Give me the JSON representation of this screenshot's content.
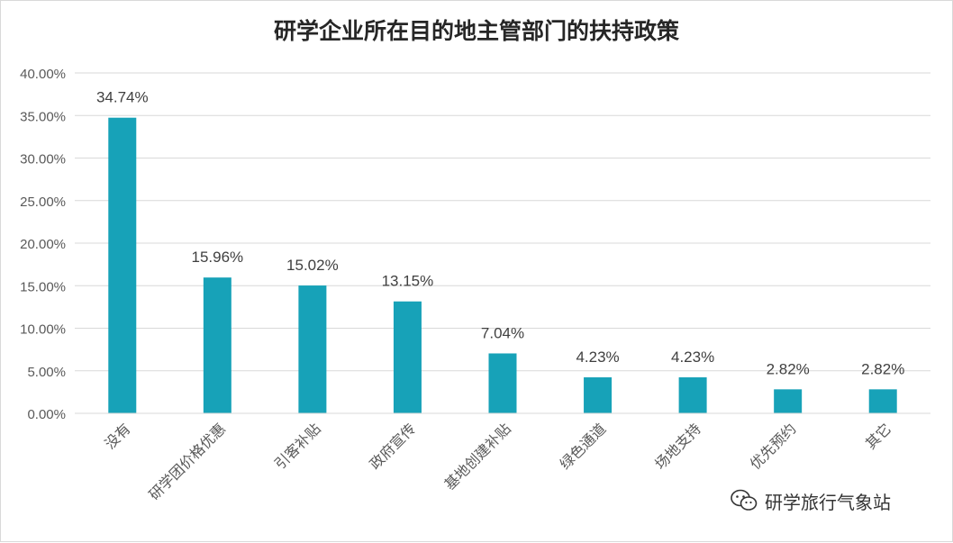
{
  "chart_data": {
    "type": "bar",
    "title": "研学企业所在目的地主管部门的扶持政策",
    "categories": [
      "没有",
      "研学团价格优惠",
      "引客补贴",
      "政府宣传",
      "基地创建补贴",
      "绿色通道",
      "场地支持",
      "优先预约",
      "其它"
    ],
    "values": [
      34.74,
      15.96,
      15.02,
      13.15,
      7.04,
      4.23,
      4.23,
      2.82,
      2.82
    ],
    "data_labels": [
      "34.74%",
      "15.96%",
      "15.02%",
      "13.15%",
      "7.04%",
      "4.23%",
      "4.23%",
      "2.82%",
      "2.82%"
    ],
    "y_ticks": [
      "0.00%",
      "5.00%",
      "10.00%",
      "15.00%",
      "20.00%",
      "25.00%",
      "30.00%",
      "35.00%",
      "40.00%"
    ],
    "ylim": [
      0,
      40
    ],
    "y_unit": "%",
    "grid": "horizontal",
    "legend": "none",
    "xlabel": "",
    "ylabel": "",
    "bar_color": "#17a2b8"
  },
  "watermark": {
    "text": "研学旅行气象站",
    "icon": "wechat-icon"
  }
}
